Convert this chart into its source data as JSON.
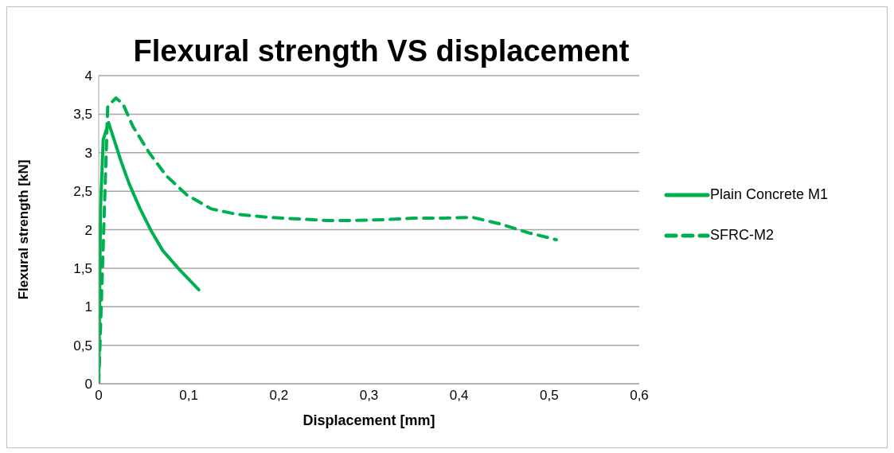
{
  "chart_data": {
    "type": "line",
    "title": "Flexural strength VS displacement",
    "xlabel": "Displacement [mm]",
    "ylabel": "Flexural strength [kN]",
    "xlim": [
      0,
      0.6
    ],
    "xticks": [
      0,
      {
        "value": 0.1,
        "label": "0,1"
      },
      {
        "value": 0.2,
        "label": "0,2"
      },
      {
        "value": 0.3,
        "label": "0,3"
      },
      {
        "value": 0.4,
        "label": "0,4"
      },
      {
        "value": 0.5,
        "label": "0,5"
      },
      {
        "value": 0.6,
        "label": "0,6"
      }
    ],
    "ylim": [
      0,
      4
    ],
    "yticks": [
      0,
      {
        "value": 0.5,
        "label": "0,5"
      },
      1,
      {
        "value": 1.5,
        "label": "1,5"
      },
      2,
      {
        "value": 2.5,
        "label": "2,5"
      },
      3,
      {
        "value": 3.5,
        "label": "3,5"
      },
      4
    ],
    "grid": "y",
    "legend": "right",
    "marker": "none",
    "series": [
      {
        "name": "Plain Concrete M1",
        "color": "#00b050",
        "line_style": "solid",
        "x": [
          0,
          0.002,
          0.005,
          0.011,
          0.025,
          0.034,
          0.046,
          0.058,
          0.071,
          0.089,
          0.111
        ],
        "values": [
          0,
          2.27,
          3.17,
          3.39,
          2.88,
          2.59,
          2.27,
          1.99,
          1.73,
          1.49,
          1.22
        ]
      },
      {
        "name": "SFRC-M2",
        "color": "#00b050",
        "line_style": "dashed",
        "x": [
          0,
          0.01,
          0.019,
          0.027,
          0.038,
          0.056,
          0.075,
          0.098,
          0.125,
          0.153,
          0.189,
          0.221,
          0.253,
          0.285,
          0.317,
          0.349,
          0.381,
          0.415,
          0.447,
          0.477,
          0.508
        ],
        "values": [
          0,
          3.6,
          3.71,
          3.63,
          3.34,
          3.0,
          2.7,
          2.45,
          2.27,
          2.2,
          2.16,
          2.14,
          2.12,
          2.12,
          2.13,
          2.15,
          2.15,
          2.16,
          2.07,
          1.96,
          1.87
        ]
      }
    ]
  }
}
